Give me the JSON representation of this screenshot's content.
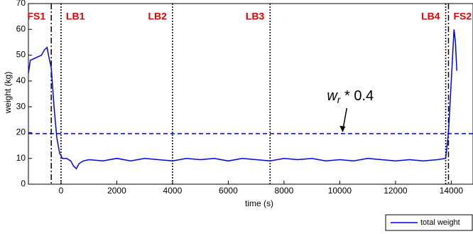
{
  "chart_data": {
    "type": "line",
    "xlabel": "time (s)",
    "ylabel": "weight (kg)",
    "xlim": [
      -1170,
      14780
    ],
    "ylim": [
      0,
      70
    ],
    "xticks": [
      0,
      2000,
      4000,
      6000,
      8000,
      10000,
      12000,
      14000
    ],
    "yticks": [
      0,
      10,
      20,
      30,
      40,
      50,
      60,
      70
    ],
    "series": [
      {
        "name": "total weight",
        "color": "#0000ee",
        "x": [
          -1170,
          -1100,
          -900,
          -700,
          -600,
          -500,
          -450,
          -350,
          -250,
          -150,
          -50,
          50,
          200,
          350,
          450,
          550,
          650,
          800,
          1000,
          1500,
          2000,
          2500,
          3000,
          3500,
          4000,
          4500,
          5000,
          5500,
          6000,
          6500,
          7000,
          7500,
          8000,
          8500,
          9000,
          9500,
          10000,
          10500,
          11000,
          11500,
          12000,
          12500,
          13000,
          13500,
          13800,
          13900,
          14000,
          14100,
          14150,
          14200
        ],
        "values": [
          43,
          48,
          49,
          50,
          52,
          53,
          50,
          45,
          30,
          18,
          12,
          10,
          10,
          9,
          7,
          6,
          8,
          9,
          9.5,
          9,
          10,
          9,
          10,
          9.5,
          9,
          10,
          9.5,
          10,
          9,
          10,
          9.5,
          9,
          10,
          9.5,
          10,
          9,
          9.5,
          9,
          10,
          9.5,
          9,
          9.5,
          9,
          9.5,
          10,
          20,
          40,
          60,
          55,
          44
        ]
      }
    ],
    "vlines": [
      {
        "x": -350,
        "style": "dashdot",
        "label": "FS1",
        "side": "left"
      },
      {
        "x": 0,
        "style": "dotted",
        "label": "LB1",
        "side": "right"
      },
      {
        "x": 4000,
        "style": "dotted",
        "label": "LB2",
        "side": "left"
      },
      {
        "x": 7500,
        "style": "dotted",
        "label": "LB3",
        "side": "left"
      },
      {
        "x": 13800,
        "style": "dotted",
        "label": "LB4",
        "side": "left"
      },
      {
        "x": 13900,
        "style": "dashdot",
        "label": "FS2",
        "side": "right"
      }
    ],
    "hline": {
      "y": 19.6,
      "color": "#0000ee"
    },
    "annotation": {
      "base": "w",
      "subscript": "r",
      "text": " * 0.4",
      "x": 10100,
      "y": 19.6
    },
    "legend": "bottom-right"
  }
}
